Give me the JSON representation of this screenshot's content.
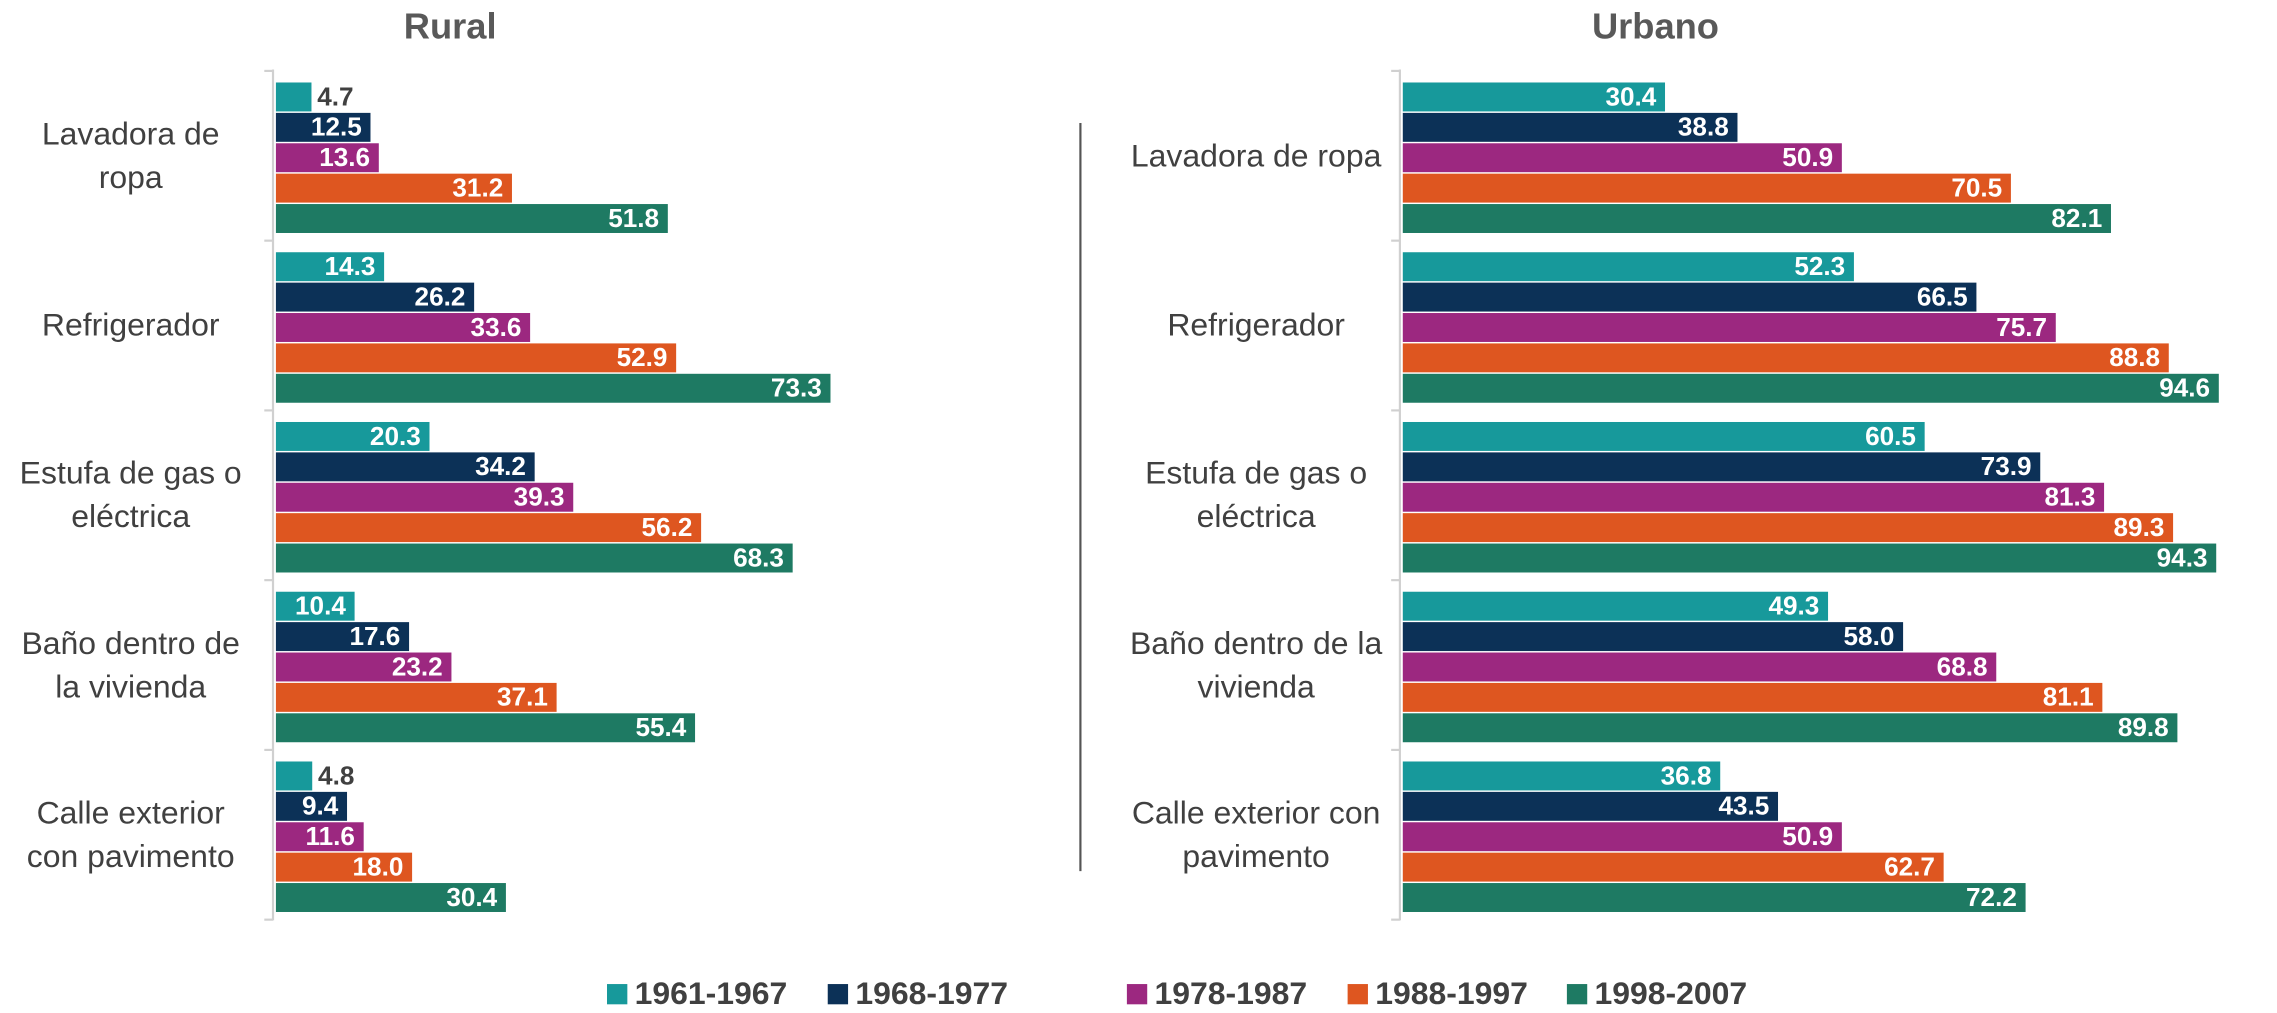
{
  "chart_data": [
    {
      "type": "bar",
      "orientation": "horizontal",
      "title": "Rural",
      "categories": [
        "Lavadora de ropa",
        "Refrigerador",
        "Estufa de gas o eléctrica",
        "Baño dentro de la vivienda",
        "Calle exterior con pavimento"
      ],
      "xlim": [
        0,
        100
      ],
      "series": [
        {
          "name": "1961-1967",
          "color": "#17999b",
          "values": [
            4.7,
            14.3,
            20.3,
            10.4,
            4.8
          ],
          "value_labels": [
            "4.7",
            "14.3",
            "20.3",
            "10.4",
            "4.8"
          ]
        },
        {
          "name": "1968-1977",
          "color": "#0c3157",
          "values": [
            12.5,
            26.2,
            34.2,
            17.6,
            9.4
          ],
          "value_labels": [
            "12.5",
            "26.2",
            "34.2",
            "17.6",
            "9.4"
          ]
        },
        {
          "name": "1978-1987",
          "color": "#9c2880",
          "values": [
            13.6,
            33.6,
            39.3,
            23.2,
            11.6
          ],
          "value_labels": [
            "13.6",
            "33.6",
            "39.3",
            "23.2",
            "11.6"
          ]
        },
        {
          "name": "1988-1997",
          "color": "#de5620",
          "values": [
            31.2,
            52.9,
            56.2,
            37.1,
            18.0
          ],
          "value_labels": [
            "31.2",
            "52.9",
            "56.2",
            "37.1",
            "18.0"
          ]
        },
        {
          "name": "1998-2007",
          "color": "#1e7a63",
          "values": [
            51.8,
            73.3,
            68.3,
            55.4,
            30.4
          ],
          "value_labels": [
            "51.8",
            "73.3",
            "68.3",
            "55.4",
            "30.4"
          ]
        }
      ]
    },
    {
      "type": "bar",
      "orientation": "horizontal",
      "title": "Urbano",
      "categories": [
        "Lavadora de ropa",
        "Refrigerador",
        "Estufa de gas o eléctrica",
        "Baño dentro de la vivienda",
        "Calle exterior con pavimento"
      ],
      "xlim": [
        0,
        100
      ],
      "series": [
        {
          "name": "1961-1967",
          "color": "#17999b",
          "values": [
            30.4,
            52.3,
            60.5,
            49.3,
            36.8
          ],
          "value_labels": [
            "30.4",
            "52.3",
            "60.5",
            "49.3",
            "36.8"
          ]
        },
        {
          "name": "1968-1977",
          "color": "#0c3157",
          "values": [
            38.8,
            66.5,
            73.9,
            58.0,
            43.5
          ],
          "value_labels": [
            "38.8",
            "66.5",
            "73.9",
            "58.0",
            "43.5"
          ]
        },
        {
          "name": "1978-1987",
          "color": "#9c2880",
          "values": [
            50.9,
            75.7,
            81.3,
            68.8,
            50.9
          ],
          "value_labels": [
            "50.9",
            "75.7",
            "81.3",
            "68.8",
            "50.9"
          ]
        },
        {
          "name": "1988-1997",
          "color": "#de5620",
          "values": [
            70.5,
            88.8,
            89.3,
            81.1,
            62.7
          ],
          "value_labels": [
            "70.5",
            "88.8",
            "89.3",
            "81.1",
            "62.7"
          ]
        },
        {
          "name": "1998-2007",
          "color": "#1e7a63",
          "values": [
            82.1,
            94.6,
            94.3,
            89.8,
            72.2
          ],
          "value_labels": [
            "82.1",
            "94.6",
            "94.3",
            "89.8",
            "72.2"
          ]
        }
      ]
    }
  ]
}
